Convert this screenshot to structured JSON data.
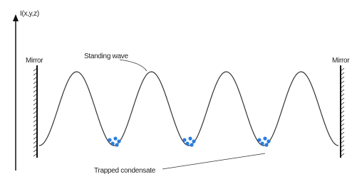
{
  "axis_label": "I(x,y,z)",
  "left_mirror": {
    "label": "Mirror"
  },
  "right_mirror": {
    "label": "Mirror"
  },
  "wave_label": "Standing wave",
  "condensate_label": "Trapped condensate"
}
